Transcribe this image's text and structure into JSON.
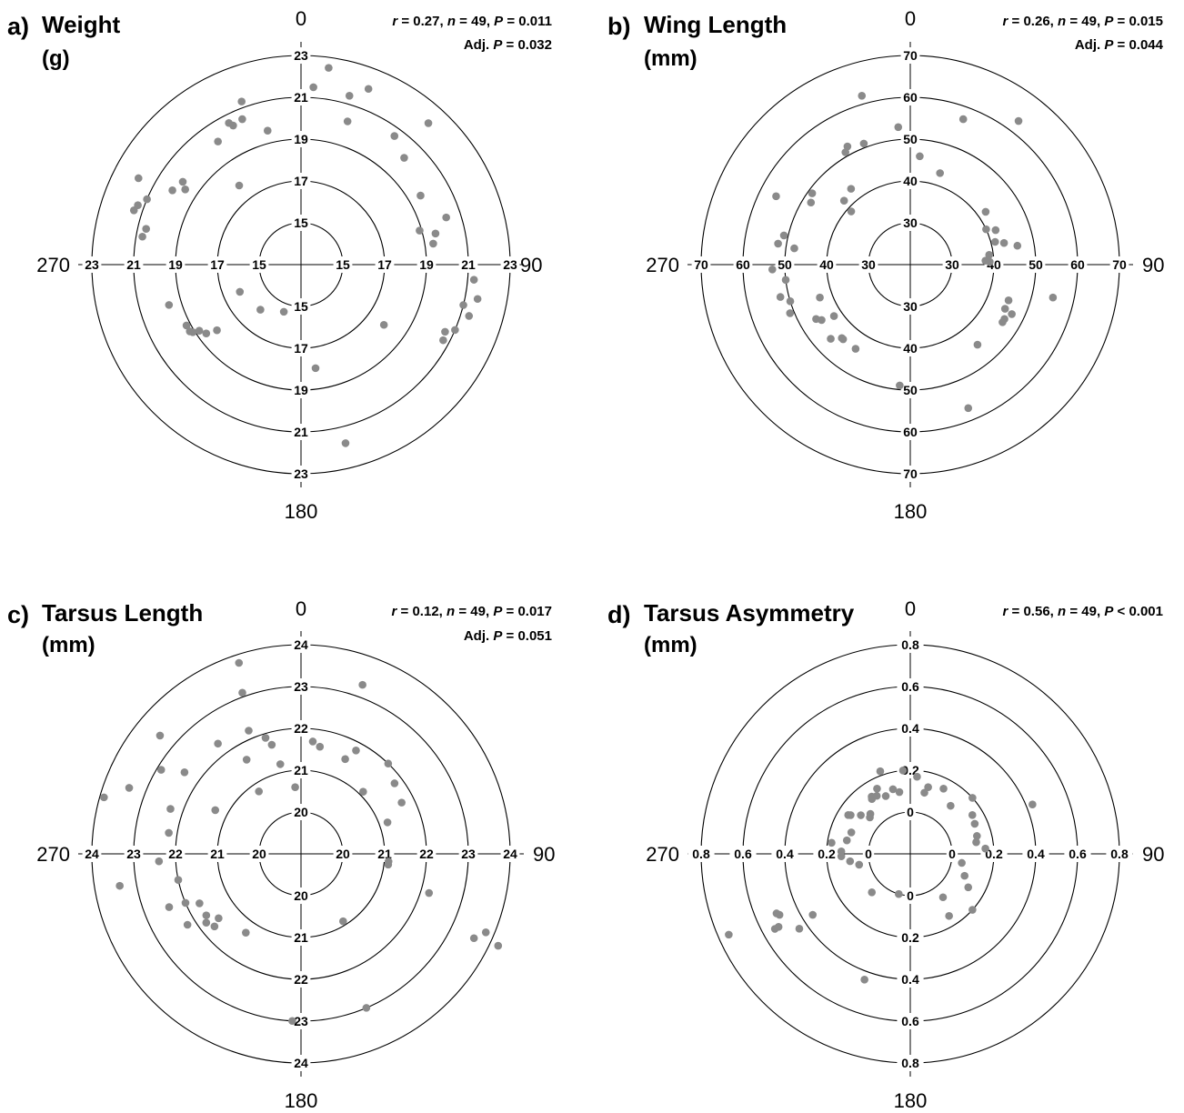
{
  "chart_data": [
    {
      "type": "scatter",
      "panel": "a)",
      "title": "Weight",
      "unit": "(g)",
      "stats": {
        "r": "0.27",
        "n": "49",
        "P": "0.011",
        "P_op": "=",
        "adj_P": "0.032"
      },
      "angle_labels": [
        "0",
        "90",
        "180",
        "270"
      ],
      "r_ticks": [
        15,
        17,
        19,
        21,
        23
      ],
      "tick_labels": [
        "15",
        "17",
        "19",
        "21",
        "23"
      ],
      "inner_value": 13,
      "rlim": [
        13,
        23
      ],
      "points": [
        [
          8,
          22.5
        ],
        [
          4,
          21.5
        ],
        [
          16,
          21.4
        ],
        [
          18,
          20.2
        ],
        [
          21,
          22.0
        ],
        [
          36,
          20.6
        ],
        [
          42,
          22.1
        ],
        [
          44,
          20.1
        ],
        [
          60,
          19.6
        ],
        [
          72,
          20.3
        ],
        [
          74,
          18.9
        ],
        [
          77,
          19.6
        ],
        [
          81,
          19.4
        ],
        [
          95,
          21.3
        ],
        [
          101,
          21.6
        ],
        [
          104,
          21.0
        ],
        [
          107,
          21.4
        ],
        [
          113,
          21.0
        ],
        [
          115,
          20.6
        ],
        [
          118,
          20.7
        ],
        [
          126,
          17.9
        ],
        [
          172,
          18.0
        ],
        [
          166,
          21.8
        ],
        [
          200,
          15.4
        ],
        [
          222,
          15.9
        ],
        [
          232,
          18.1
        ],
        [
          234,
          18.6
        ],
        [
          237,
          18.8
        ],
        [
          238,
          19.1
        ],
        [
          239,
          19.2
        ],
        [
          242,
          19.2
        ],
        [
          246,
          16.2
        ],
        [
          253,
          19.6
        ],
        [
          280,
          20.7
        ],
        [
          283,
          20.6
        ],
        [
          288,
          21.4
        ],
        [
          290,
          21.3
        ],
        [
          293,
          21.0
        ],
        [
          298,
          21.8
        ],
        [
          300,
          20.1
        ],
        [
          303,
          19.6
        ],
        [
          305,
          19.9
        ],
        [
          322,
          17.8
        ],
        [
          326,
          20.1
        ],
        [
          333,
          20.6
        ],
        [
          334,
          20.4
        ],
        [
          338,
          20.5
        ],
        [
          346,
          19.6
        ],
        [
          340,
          21.3
        ]
      ]
    },
    {
      "type": "scatter",
      "panel": "b)",
      "title": "Wing Length",
      "unit": "(mm)",
      "stats": {
        "r": "0.26",
        "n": "49",
        "P": "0.015",
        "P_op": "=",
        "adj_P": "0.044"
      },
      "angle_labels": [
        "0",
        "90",
        "180",
        "270"
      ],
      "r_ticks": [
        30,
        40,
        50,
        60,
        70
      ],
      "tick_labels": [
        "30",
        "40",
        "50",
        "60",
        "70"
      ],
      "inner_value": 20,
      "rlim": [
        20,
        70
      ],
      "points": [
        [
          5,
          46
        ],
        [
          18,
          43
        ],
        [
          20,
          57
        ],
        [
          37,
          63
        ],
        [
          55,
          42
        ],
        [
          65,
          40
        ],
        [
          68,
          42
        ],
        [
          75,
          41
        ],
        [
          77,
          43
        ],
        [
          80,
          46
        ],
        [
          83,
          39
        ],
        [
          87,
          38
        ],
        [
          88,
          39
        ],
        [
          103,
          55
        ],
        [
          110,
          45
        ],
        [
          115,
          45
        ],
        [
          116,
          47
        ],
        [
          120,
          46
        ],
        [
          122,
          46
        ],
        [
          140,
          45
        ],
        [
          158,
          57
        ],
        [
          185,
          49
        ],
        [
          213,
          44
        ],
        [
          222,
          44
        ],
        [
          223,
          44
        ],
        [
          227,
          46
        ],
        [
          236,
          42
        ],
        [
          238,
          45
        ],
        [
          240,
          46
        ],
        [
          250,
          43
        ],
        [
          248,
          51
        ],
        [
          256,
          52
        ],
        [
          253,
          50
        ],
        [
          263,
          50
        ],
        [
          268,
          53
        ],
        [
          278,
          48
        ],
        [
          279,
          52
        ],
        [
          283,
          51
        ],
        [
          297,
          56
        ],
        [
          302,
          48
        ],
        [
          306,
          49
        ],
        [
          312,
          39
        ],
        [
          314,
          42
        ],
        [
          322,
          43
        ],
        [
          330,
          51
        ],
        [
          332,
          52
        ],
        [
          339,
          51
        ],
        [
          344,
          62
        ],
        [
          355,
          53
        ]
      ]
    },
    {
      "type": "scatter",
      "panel": "c)",
      "title": "Tarsus Length",
      "unit": "(mm)",
      "stats": {
        "r": "0.12",
        "n": "49",
        "P": "0.017",
        "P_op": "=",
        "adj_P": "0.051"
      },
      "angle_labels": [
        "0",
        "90",
        "180",
        "270"
      ],
      "r_ticks": [
        20,
        21,
        22,
        23,
        24
      ],
      "tick_labels": [
        "20",
        "21",
        "22",
        "23",
        "24"
      ],
      "inner_value": 19,
      "rlim": [
        19,
        24
      ],
      "points": [
        [
          6,
          21.7
        ],
        [
          10,
          21.6
        ],
        [
          20,
          23.3
        ],
        [
          25,
          21.5
        ],
        [
          28,
          21.8
        ],
        [
          45,
          21.1
        ],
        [
          44,
          22.0
        ],
        [
          53,
          21.8
        ],
        [
          63,
          21.7
        ],
        [
          70,
          21.2
        ],
        [
          95,
          21.1
        ],
        [
          97,
          21.1
        ],
        [
          107,
          22.2
        ],
        [
          113,
          23.8
        ],
        [
          115,
          24.2
        ],
        [
          116,
          23.6
        ],
        [
          148,
          20.9
        ],
        [
          157,
          23.0
        ],
        [
          183,
          23.0
        ],
        [
          215,
          21.3
        ],
        [
          230,
          21.7
        ],
        [
          232,
          21.5
        ],
        [
          234,
          21.8
        ],
        [
          237,
          21.7
        ],
        [
          238,
          22.2
        ],
        [
          244,
          21.7
        ],
        [
          247,
          22.0
        ],
        [
          248,
          22.4
        ],
        [
          258,
          22.0
        ],
        [
          260,
          23.4
        ],
        [
          267,
          22.4
        ],
        [
          279,
          22.2
        ],
        [
          286,
          23.9
        ],
        [
          289,
          22.3
        ],
        [
          291,
          23.4
        ],
        [
          297,
          21.3
        ],
        [
          301,
          22.9
        ],
        [
          305,
          22.4
        ],
        [
          310,
          23.4
        ],
        [
          323,
          22.3
        ],
        [
          326,
          20.8
        ],
        [
          330,
          21.6
        ],
        [
          337,
          22.2
        ],
        [
          340,
          23.1
        ],
        [
          342,
          23.8
        ],
        [
          343,
          21.9
        ],
        [
          345,
          21.7
        ],
        [
          347,
          21.2
        ],
        [
          355,
          20.6
        ]
      ]
    },
    {
      "type": "scatter",
      "panel": "d)",
      "title": "Tarsus Asymmetry",
      "unit": "(mm)",
      "stats": {
        "r": "0.56",
        "n": "49",
        "P": "0.001",
        "P_op": "<",
        "adj_P": ""
      },
      "angle_labels": [
        "0",
        "90",
        "180",
        "270"
      ],
      "r_ticks": [
        0,
        0.2,
        0.4,
        0.6,
        0.8
      ],
      "tick_labels": [
        "0",
        "0.2",
        "0.4",
        "0.6",
        "0.8"
      ],
      "inner_value": -0.2,
      "rlim": [
        -0.2,
        0.8
      ],
      "points": [
        [
          5,
          0.17
        ],
        [
          15,
          0.13
        ],
        [
          27,
          0.15
        ],
        [
          40,
          0.1
        ],
        [
          48,
          0.2
        ],
        [
          58,
          0.15
        ],
        [
          65,
          0.14
        ],
        [
          75,
          0.13
        ],
        [
          80,
          0.12
        ],
        [
          86,
          0.16
        ],
        [
          68,
          0.43
        ],
        [
          100,
          0.05
        ],
        [
          112,
          0.08
        ],
        [
          120,
          0.12
        ],
        [
          132,
          0.2
        ],
        [
          143,
          0.06
        ],
        [
          148,
          0.15
        ],
        [
          196,
          0.0
        ],
        [
          200,
          0.44
        ],
        [
          225,
          0.06
        ],
        [
          236,
          0.44
        ],
        [
          241,
          0.52
        ],
        [
          241,
          0.54
        ],
        [
          238,
          0.35
        ],
        [
          245,
          0.49
        ],
        [
          246,
          0.5
        ],
        [
          246,
          0.75
        ],
        [
          258,
          0.05
        ],
        [
          263,
          0.09
        ],
        [
          268,
          0.13
        ],
        [
          272,
          0.13
        ],
        [
          278,
          0.18
        ],
        [
          282,
          0.11
        ],
        [
          290,
          0.1
        ],
        [
          302,
          0.15
        ],
        [
          303,
          0.14
        ],
        [
          308,
          0.1
        ],
        [
          312,
          0.06
        ],
        [
          325,
          0.12
        ],
        [
          326,
          0.13
        ],
        [
          330,
          0.12
        ],
        [
          333,
          0.15
        ],
        [
          337,
          0.1
        ],
        [
          340,
          0.22
        ],
        [
          345,
          0.12
        ],
        [
          350,
          0.1
        ],
        [
          315,
          0.07
        ],
        [
          13,
          0.1
        ],
        [
          355,
          0.2
        ]
      ]
    }
  ]
}
